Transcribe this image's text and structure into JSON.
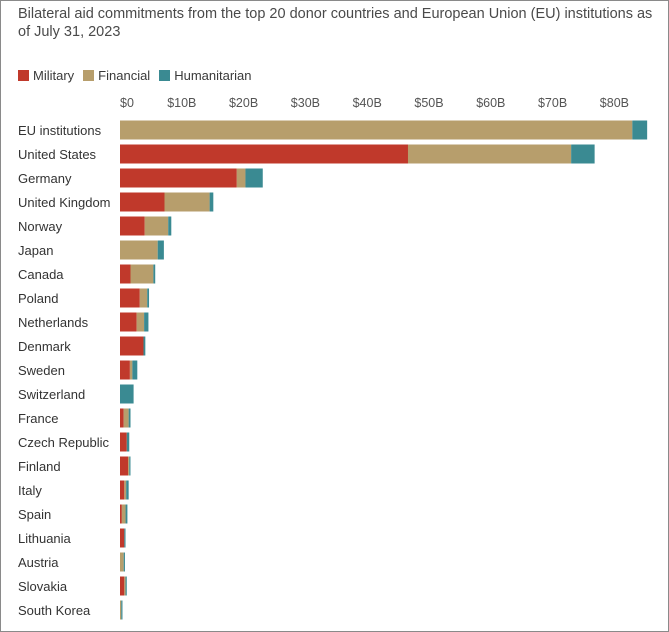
{
  "chart_data": {
    "type": "bar",
    "orientation": "horizontal",
    "stacked": true,
    "title": "Bilateral aid commitments from the top 20 donor countries and European Union (EU) institutions as of July 31, 2023",
    "xlabel": "",
    "ylabel": "",
    "xlim": [
      0,
      85
    ],
    "x_unit": "billion USD",
    "ticks": [
      0,
      10,
      20,
      30,
      40,
      50,
      60,
      70,
      80
    ],
    "tick_labels": [
      "$0",
      "$10B",
      "$20B",
      "$30B",
      "$40B",
      "$50B",
      "$60B",
      "$70B",
      "$80B"
    ],
    "categories": [
      "EU institutions",
      "United States",
      "Germany",
      "United Kingdom",
      "Norway",
      "Japan",
      "Canada",
      "Poland",
      "Netherlands",
      "Denmark",
      "Sweden",
      "Switzerland",
      "France",
      "Czech Republic",
      "Finland",
      "Italy",
      "Spain",
      "Lithuania",
      "Austria",
      "Slovakia",
      "South Korea"
    ],
    "series": [
      {
        "name": "Military",
        "color": "#c0392b",
        "values": [
          0,
          46.6,
          18.9,
          7.2,
          4.0,
          0,
          1.7,
          3.2,
          2.7,
          3.8,
          1.6,
          0,
          0.6,
          1.1,
          1.3,
          0.7,
          0.3,
          0.7,
          0,
          0.7,
          0
        ]
      },
      {
        "name": "Financial",
        "color": "#b79e6c",
        "values": [
          82.9,
          26.4,
          1.4,
          7.3,
          3.8,
          6.1,
          3.7,
          1.2,
          1.2,
          0,
          0.4,
          0,
          0.8,
          0,
          0.2,
          0.3,
          0.6,
          0,
          0.6,
          0.2,
          0.2
        ]
      },
      {
        "name": "Humanitarian",
        "color": "#3a8a92",
        "values": [
          2.4,
          3.8,
          2.8,
          0.6,
          0.5,
          1.0,
          0.3,
          0.3,
          0.7,
          0.3,
          0.8,
          2.2,
          0.3,
          0.4,
          0.1,
          0.4,
          0.3,
          0.1,
          0.2,
          0.1,
          0.2
        ]
      }
    ],
    "legend_position": "top-left",
    "grid": false
  }
}
